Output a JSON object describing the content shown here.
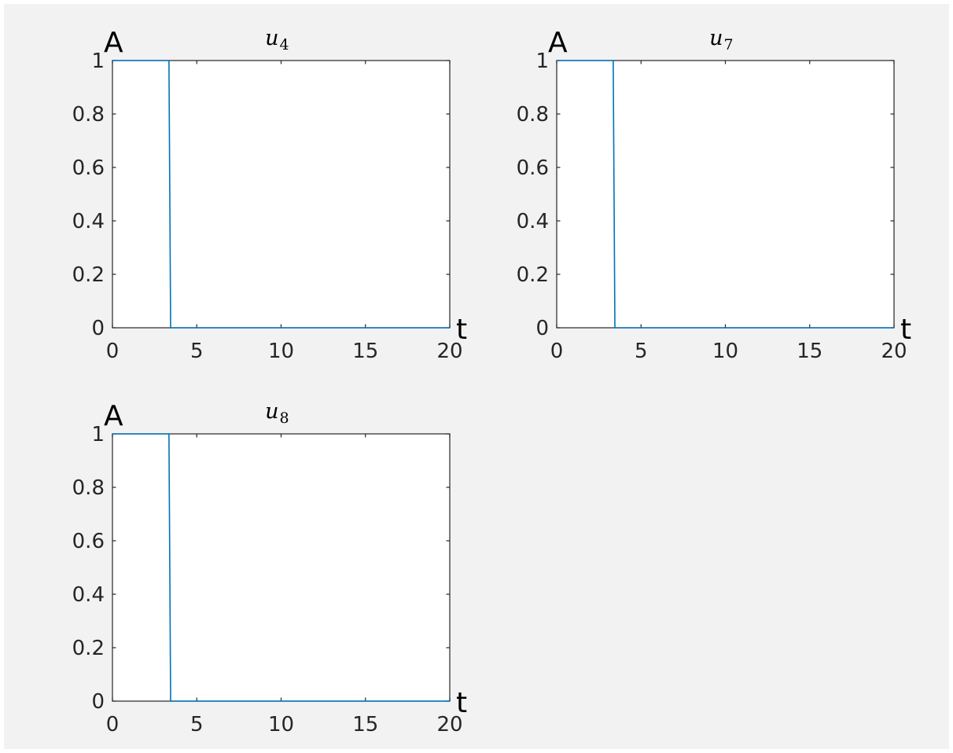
{
  "chart_data": [
    {
      "type": "line",
      "title": {
        "base": "u",
        "subscript": "4"
      },
      "xlabel": "t",
      "ylabel": "A",
      "xlim": [
        0,
        20
      ],
      "ylim": [
        0,
        1
      ],
      "xticks": [
        0,
        5,
        10,
        15,
        20
      ],
      "yticks": [
        0,
        0.2,
        0.4,
        0.6,
        0.8,
        1
      ],
      "xtick_labels": [
        "0",
        "5",
        "10",
        "15",
        "20"
      ],
      "ytick_labels": [
        "0",
        "0.2",
        "0.4",
        "0.6",
        "0.8",
        "1"
      ],
      "grid": false,
      "color": "#0072BD",
      "series": [
        {
          "x": [
            0,
            3.35,
            3.45,
            20
          ],
          "y": [
            1,
            1,
            0,
            0
          ]
        }
      ]
    },
    {
      "type": "line",
      "title": {
        "base": "u",
        "subscript": "7"
      },
      "xlabel": "t",
      "ylabel": "A",
      "xlim": [
        0,
        20
      ],
      "ylim": [
        0,
        1
      ],
      "xticks": [
        0,
        5,
        10,
        15,
        20
      ],
      "yticks": [
        0,
        0.2,
        0.4,
        0.6,
        0.8,
        1
      ],
      "xtick_labels": [
        "0",
        "5",
        "10",
        "15",
        "20"
      ],
      "ytick_labels": [
        "0",
        "0.2",
        "0.4",
        "0.6",
        "0.8",
        "1"
      ],
      "grid": false,
      "color": "#0072BD",
      "series": [
        {
          "x": [
            0,
            3.35,
            3.45,
            20
          ],
          "y": [
            1,
            1,
            0,
            0
          ]
        }
      ]
    },
    {
      "type": "line",
      "title": {
        "base": "u",
        "subscript": "8"
      },
      "xlabel": "t",
      "ylabel": "A",
      "xlim": [
        0,
        20
      ],
      "ylim": [
        0,
        1
      ],
      "xticks": [
        0,
        5,
        10,
        15,
        20
      ],
      "yticks": [
        0,
        0.2,
        0.4,
        0.6,
        0.8,
        1
      ],
      "xtick_labels": [
        "0",
        "5",
        "10",
        "15",
        "20"
      ],
      "ytick_labels": [
        "0",
        "0.2",
        "0.4",
        "0.6",
        "0.8",
        "1"
      ],
      "grid": false,
      "color": "#0072BD",
      "series": [
        {
          "x": [
            0,
            3.35,
            3.45,
            20
          ],
          "y": [
            1,
            1,
            0,
            0
          ]
        }
      ]
    }
  ]
}
